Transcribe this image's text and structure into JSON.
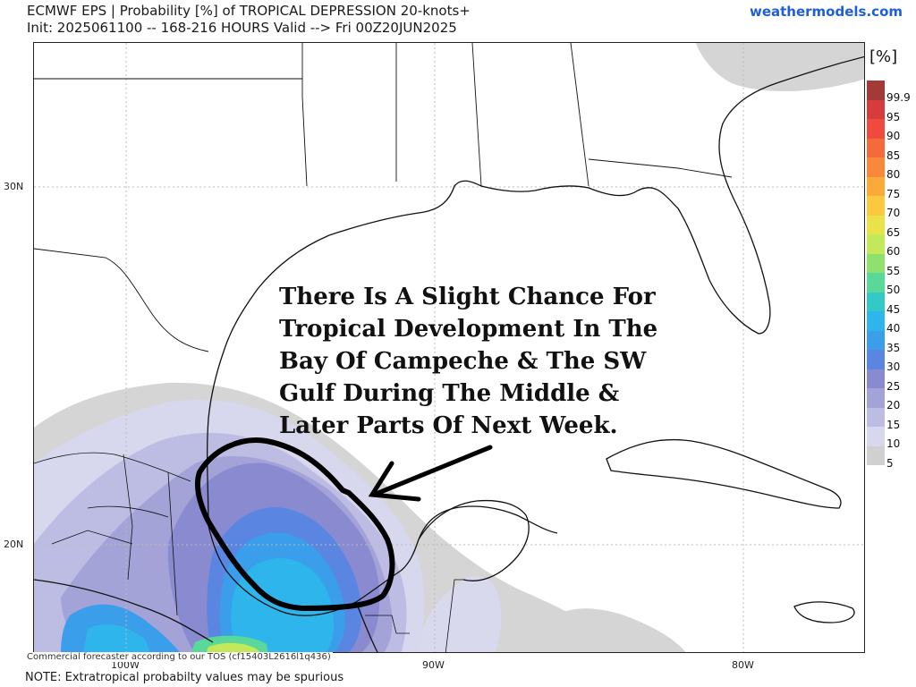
{
  "header": {
    "line1": "ECMWF EPS | Probability [%] of TROPICAL DEPRESSION 20-knots+",
    "line2": "Init: 2025061100 -- 168-216 HOURS Valid --> Fri 00Z20JUN2025",
    "brand": "weathermodels.com"
  },
  "annotation": {
    "text": "There Is A Slight Chance For Tropical Development In The Bay Of Campeche & The SW Gulf During The Middle & Later Parts Of Next Week."
  },
  "map": {
    "lat_labels": [
      "30N",
      "20N"
    ],
    "lon_labels": [
      "100W",
      "90W",
      "80W"
    ],
    "credit": "Commercial forecaster according to our TOS (cf15403L2616l1q436)",
    "note": "NOTE: Extratropical probabilty values may be spurious"
  },
  "legend": {
    "unit": "[%]",
    "items": [
      {
        "label": "99.9",
        "color": "#a33a38"
      },
      {
        "label": "95",
        "color": "#d63c3c"
      },
      {
        "label": "90",
        "color": "#f04a3e"
      },
      {
        "label": "85",
        "color": "#f46a3a"
      },
      {
        "label": "80",
        "color": "#f8893a"
      },
      {
        "label": "75",
        "color": "#fbaa3a"
      },
      {
        "label": "70",
        "color": "#fcc83e"
      },
      {
        "label": "65",
        "color": "#eae249"
      },
      {
        "label": "60",
        "color": "#c3e85a"
      },
      {
        "label": "55",
        "color": "#8fe06e"
      },
      {
        "label": "50",
        "color": "#5ad89a"
      },
      {
        "label": "45",
        "color": "#33c9c6"
      },
      {
        "label": "40",
        "color": "#2eb6ec"
      },
      {
        "label": "35",
        "color": "#3a9eea"
      },
      {
        "label": "30",
        "color": "#5a86e2"
      },
      {
        "label": "25",
        "color": "#8a8ad0"
      },
      {
        "label": "20",
        "color": "#a3a3d8"
      },
      {
        "label": "15",
        "color": "#bdbde4"
      },
      {
        "label": "10",
        "color": "#d7d7ee"
      },
      {
        "label": "5",
        "color": "#d0d0d0"
      }
    ]
  }
}
